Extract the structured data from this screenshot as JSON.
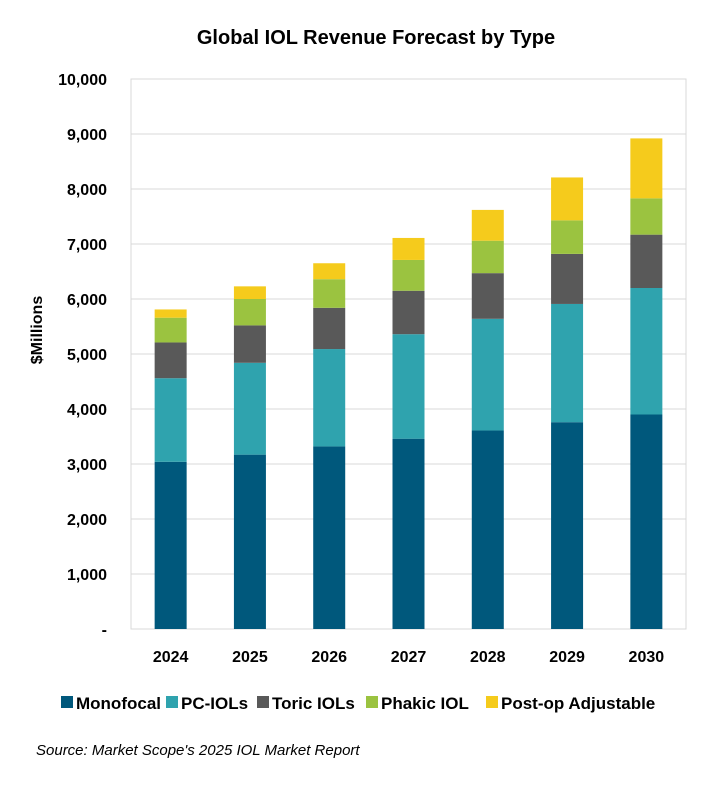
{
  "chart_data": {
    "type": "bar",
    "stacked": true,
    "title": "Global IOL Revenue Forecast by Type",
    "xlabel": "",
    "ylabel": "$Millions",
    "ylim": [
      0,
      10000
    ],
    "y_ticks": [
      0,
      1000,
      2000,
      3000,
      4000,
      5000,
      6000,
      7000,
      8000,
      9000,
      10000
    ],
    "y_tick_labels": [
      "-",
      "1,000",
      "2,000",
      "3,000",
      "4,000",
      "5,000",
      "6,000",
      "7,000",
      "8,000",
      "9,000",
      "10,000"
    ],
    "grid": true,
    "legend_position": "bottom",
    "categories": [
      "2024",
      "2025",
      "2026",
      "2027",
      "2028",
      "2029",
      "2030"
    ],
    "series": [
      {
        "name": "Monofocal",
        "color": "#00587C",
        "values": [
          3040,
          3170,
          3320,
          3460,
          3610,
          3760,
          3900
        ]
      },
      {
        "name": "PC-IOLs",
        "color": "#2FA3AE",
        "values": [
          1520,
          1670,
          1770,
          1900,
          2030,
          2150,
          2300
        ]
      },
      {
        "name": "Toric IOLs",
        "color": "#595959",
        "values": [
          650,
          680,
          750,
          790,
          830,
          910,
          970
        ]
      },
      {
        "name": "Phakic IOL",
        "color": "#9BC340",
        "values": [
          450,
          480,
          520,
          560,
          590,
          610,
          660
        ]
      },
      {
        "name": "Post-op Adjustable",
        "color": "#F5CB1C",
        "values": [
          150,
          230,
          290,
          400,
          560,
          780,
          1090
        ]
      }
    ]
  },
  "source": "Source: Market Scope's 2025 IOL Market Report"
}
